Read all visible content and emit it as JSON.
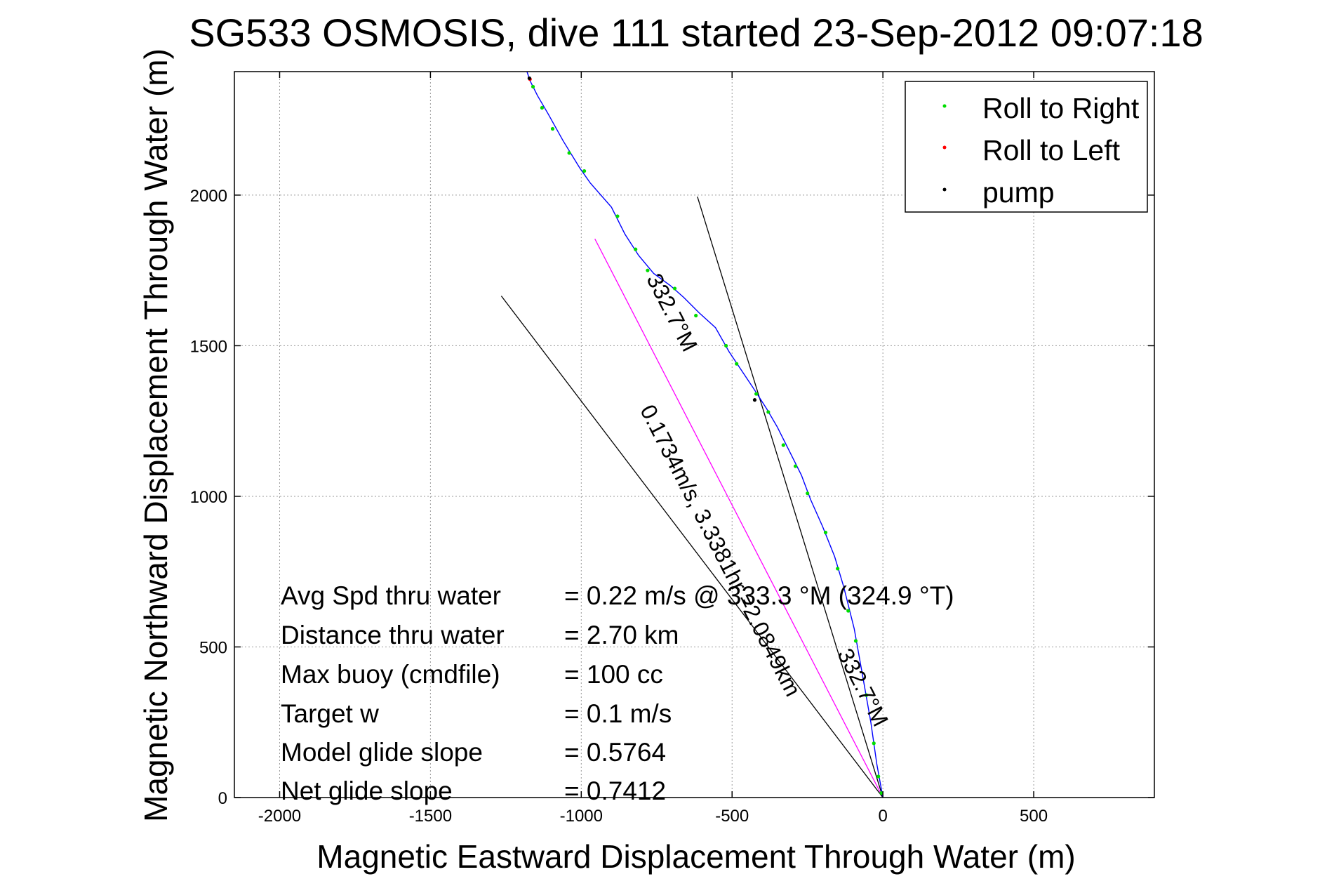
{
  "chart_data": {
    "type": "line",
    "title": "SG533 OSMOSIS, dive 111 started 23-Sep-2012 09:07:18",
    "xlabel": "Magnetic Eastward Displacement Through Water (m)",
    "ylabel": "Magnetic Northward Displacement Through Water (m)",
    "xlim": [
      -2150,
      900
    ],
    "ylim": [
      0,
      2410
    ],
    "xticks": [
      -2000,
      -1500,
      -1000,
      -500,
      0,
      500
    ],
    "yticks": [
      0,
      500,
      1000,
      1500,
      2000
    ],
    "grid": true,
    "legend_position": "top-right",
    "legend": [
      {
        "label": "Roll to Right",
        "color": "#00dd00"
      },
      {
        "label": "Roll to Left",
        "color": "#ff0000"
      },
      {
        "label": "pump",
        "color": "#000000"
      }
    ],
    "track": {
      "color": "#0000ff",
      "points": [
        [
          0,
          0
        ],
        [
          -20,
          110
        ],
        [
          -40,
          250
        ],
        [
          -70,
          420
        ],
        [
          -95,
          560
        ],
        [
          -130,
          700
        ],
        [
          -160,
          800
        ],
        [
          -200,
          900
        ],
        [
          -240,
          990
        ],
        [
          -270,
          1070
        ],
        [
          -310,
          1150
        ],
        [
          -350,
          1230
        ],
        [
          -385,
          1290
        ],
        [
          -430,
          1360
        ],
        [
          -470,
          1420
        ],
        [
          -510,
          1480
        ],
        [
          -555,
          1560
        ],
        [
          -610,
          1610
        ],
        [
          -660,
          1660
        ],
        [
          -705,
          1700
        ],
        [
          -760,
          1740
        ],
        [
          -810,
          1800
        ],
        [
          -855,
          1870
        ],
        [
          -900,
          1960
        ],
        [
          -970,
          2040
        ],
        [
          -1005,
          2090
        ],
        [
          -1060,
          2180
        ],
        [
          -1110,
          2270
        ],
        [
          -1145,
          2330
        ],
        [
          -1170,
          2380
        ],
        [
          -1180,
          2410
        ]
      ]
    },
    "roll_right_points": [
      [
        -5,
        15
      ],
      [
        -15,
        70
      ],
      [
        -30,
        180
      ],
      [
        -55,
        340
      ],
      [
        -90,
        520
      ],
      [
        -115,
        620
      ],
      [
        -150,
        760
      ],
      [
        -190,
        880
      ],
      [
        -250,
        1010
      ],
      [
        -290,
        1100
      ],
      [
        -330,
        1170
      ],
      [
        -380,
        1280
      ],
      [
        -420,
        1340
      ],
      [
        -485,
        1440
      ],
      [
        -520,
        1500
      ],
      [
        -620,
        1600
      ],
      [
        -690,
        1690
      ],
      [
        -780,
        1750
      ],
      [
        -820,
        1820
      ],
      [
        -880,
        1930
      ],
      [
        -990,
        2080
      ],
      [
        -1040,
        2140
      ],
      [
        -1095,
        2220
      ],
      [
        -1130,
        2290
      ],
      [
        -1160,
        2360
      ]
    ],
    "roll_left_points": [
      [
        -1170,
        2385
      ]
    ],
    "pump_points": [
      [
        -425,
        1320
      ],
      [
        -1172,
        2388
      ]
    ],
    "reference_lines": [
      {
        "name": "current",
        "color": "#ff00ff",
        "points": [
          [
            0,
            0
          ],
          [
            -955,
            1855
          ]
        ],
        "label": "0.1734m/s, 3.3381hr =2.0849km"
      },
      {
        "name": "line-a",
        "color": "#000000",
        "points": [
          [
            0,
            0
          ],
          [
            -1265,
            1665
          ]
        ]
      },
      {
        "name": "line-b",
        "color": "#000000",
        "points": [
          [
            0,
            0
          ],
          [
            -615,
            1995
          ]
        ]
      }
    ],
    "rotated_labels": [
      {
        "text": "0.1734m/s, 3.3381hr =2.0849km",
        "angle": 62.8
      },
      {
        "text": "332.7°M",
        "angle": 62.8
      },
      {
        "text": "332.7°M",
        "angle": 62.8
      }
    ],
    "stats": [
      {
        "label": "Avg Spd thru water",
        "value": "=  0.22 m/s @ 333.3 °M (324.9 °T)"
      },
      {
        "label": "Distance thru water",
        "value": "=  2.70 km"
      },
      {
        "label": "Max buoy (cmdfile)",
        "value": "= 100 cc"
      },
      {
        "label": "Target w",
        "value": "= 0.1 m/s"
      },
      {
        "label": "Model glide slope",
        "value": "= 0.5764"
      },
      {
        "label": "Net glide slope",
        "value": "= 0.7412"
      }
    ]
  }
}
